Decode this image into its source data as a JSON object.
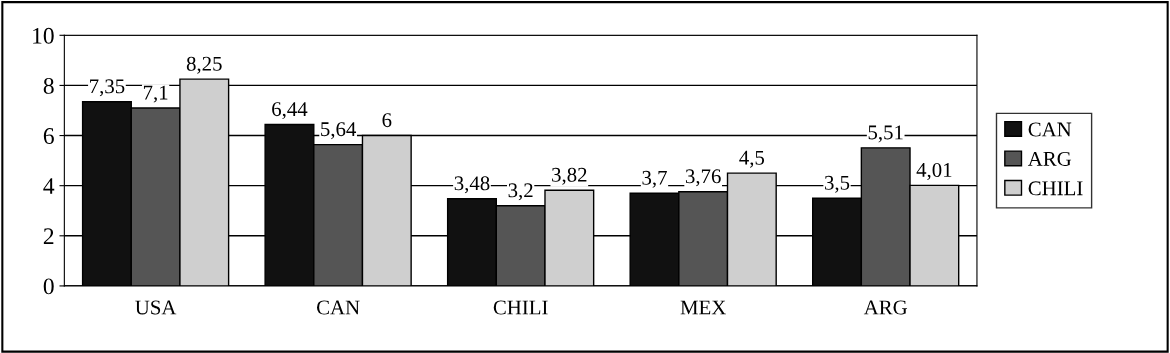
{
  "chart_data": {
    "type": "bar",
    "categories": [
      "USA",
      "CAN",
      "CHILI",
      "MEX",
      "ARG"
    ],
    "series": [
      {
        "name": "CAN",
        "color": "#111111",
        "values": [
          7.35,
          6.44,
          3.48,
          3.7,
          3.5
        ],
        "value_labels": [
          "7,35",
          "6,44",
          "3,48",
          "3,7",
          "3,5"
        ]
      },
      {
        "name": "ARG",
        "color": "#555555",
        "values": [
          7.1,
          5.64,
          3.2,
          3.76,
          5.51
        ],
        "value_labels": [
          "7,1",
          "5,64",
          "3,2",
          "3,76",
          "5,51"
        ]
      },
      {
        "name": "CHILI",
        "color": "#cfcfcf",
        "values": [
          8.25,
          6,
          3.82,
          4.5,
          4.01
        ],
        "value_labels": [
          "8,25",
          "6",
          "3,82",
          "4,5",
          "4,01"
        ]
      }
    ],
    "ylim": [
      0,
      10
    ],
    "yticks": [
      0,
      2,
      4,
      6,
      8,
      10
    ],
    "grid": "y",
    "legend": "right"
  }
}
